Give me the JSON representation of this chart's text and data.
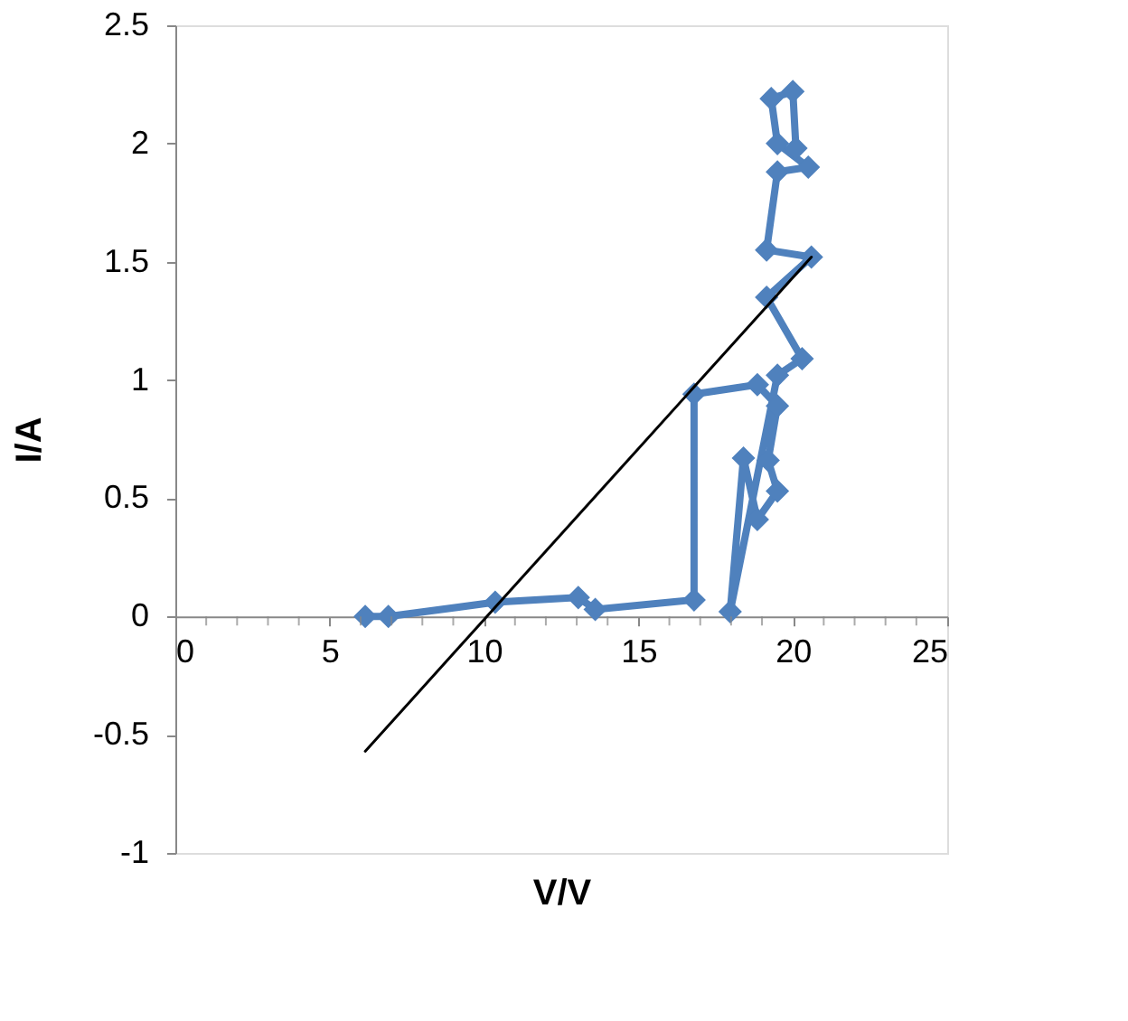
{
  "chart_data": {
    "type": "line",
    "xlabel": "V/V",
    "ylabel": "I/A",
    "xlim": [
      0,
      25
    ],
    "ylim": [
      -1,
      2.5
    ],
    "xticks": [
      0,
      {
        "value": 1,
        "label": null
      },
      {
        "value": 2,
        "label": null
      },
      {
        "value": 3,
        "label": null
      },
      {
        "value": 4,
        "label": null
      },
      5,
      {
        "value": 6,
        "label": null
      },
      {
        "value": 7,
        "label": null
      },
      {
        "value": 8,
        "label": null
      },
      {
        "value": 9,
        "label": null
      },
      10,
      {
        "value": 11,
        "label": null
      },
      {
        "value": 12,
        "label": null
      },
      {
        "value": 13,
        "label": null
      },
      {
        "value": 14,
        "label": null
      },
      15,
      {
        "value": 16,
        "label": null
      },
      {
        "value": 17,
        "label": null
      },
      {
        "value": 18,
        "label": null
      },
      {
        "value": 19,
        "label": null
      },
      20,
      {
        "value": 21,
        "label": null
      },
      {
        "value": 22,
        "label": null
      },
      {
        "value": 23,
        "label": null
      },
      {
        "value": 24,
        "label": null
      },
      25
    ],
    "yticks": [
      -1,
      -0.5,
      0,
      0.5,
      1,
      1.5,
      2,
      2.5
    ],
    "grid": false,
    "legend": false,
    "series": [
      {
        "color": "#4f81bd",
        "marker": "diamond",
        "line_style": "solid",
        "x": [
          6.15,
          6.9,
          10.36,
          13.05,
          13.6,
          16.8,
          16.8,
          18.85,
          19.5,
          19.2,
          19.5,
          18.85,
          18.4,
          17.97,
          19.5,
          20.3,
          19.15,
          20.6,
          19.15,
          19.5,
          20.5,
          19.5,
          19.3,
          20.0,
          20.1
        ],
        "values": [
          0,
          0,
          0.06,
          0.08,
          0.03,
          0.07,
          0.94,
          0.98,
          0.89,
          0.66,
          0.53,
          0.41,
          0.67,
          0.02,
          1.02,
          1.09,
          1.35,
          1.52,
          1.55,
          1.88,
          1.9,
          2.0,
          2.19,
          2.22,
          1.98
        ]
      },
      {
        "type": "line",
        "color": "#000000",
        "marker": "none",
        "line_style": "solid",
        "x": [
          6.15,
          20.6
        ],
        "values": [
          -0.57,
          1.52
        ]
      }
    ]
  }
}
